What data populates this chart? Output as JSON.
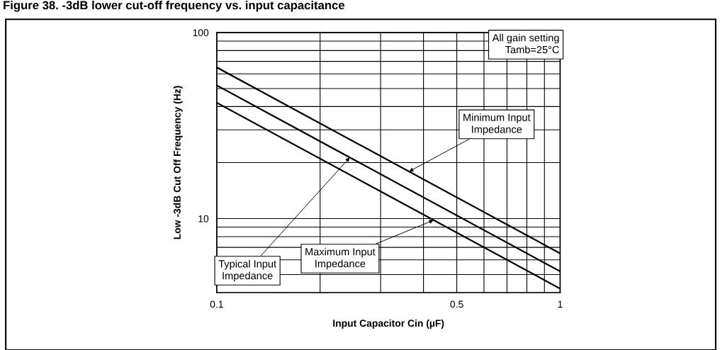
{
  "chart_data": {
    "type": "line",
    "title": "Figure 38. -3dB lower cut-off frequency vs. input capacitance",
    "xlabel": "Input Capacitor Cin (µF)",
    "ylabel": "Low -3dB Cut Off Frequency (Hz)",
    "x": [
      0.1,
      1
    ],
    "series": [
      {
        "color": "#000000",
        "values": [
          65,
          6.5
        ]
      },
      {
        "color": "#000000",
        "values": [
          52,
          5.2
        ]
      },
      {
        "color": "#000000",
        "values": [
          42,
          4.2
        ]
      }
    ],
    "log": "xy",
    "xlim": [
      0.1,
      1
    ],
    "ylim": [
      4,
      100
    ],
    "xticks": [
      0.1,
      0.5,
      1
    ],
    "yticks": [
      10,
      100
    ],
    "grid": true,
    "legend": false,
    "marker": "none",
    "line_style": "solid",
    "annotations": [
      "All gain setting\nTamb=25°C",
      {
        "text": "Minimum Input\nImpedance",
        "x": 0.363,
        "y": 17.9
      },
      {
        "text": "Typical Input\nImpedance",
        "x": 0.244,
        "y": 21.3
      },
      {
        "text": "Maximum Input\nImpedance",
        "x": 0.428,
        "y": 9.8
      }
    ]
  }
}
